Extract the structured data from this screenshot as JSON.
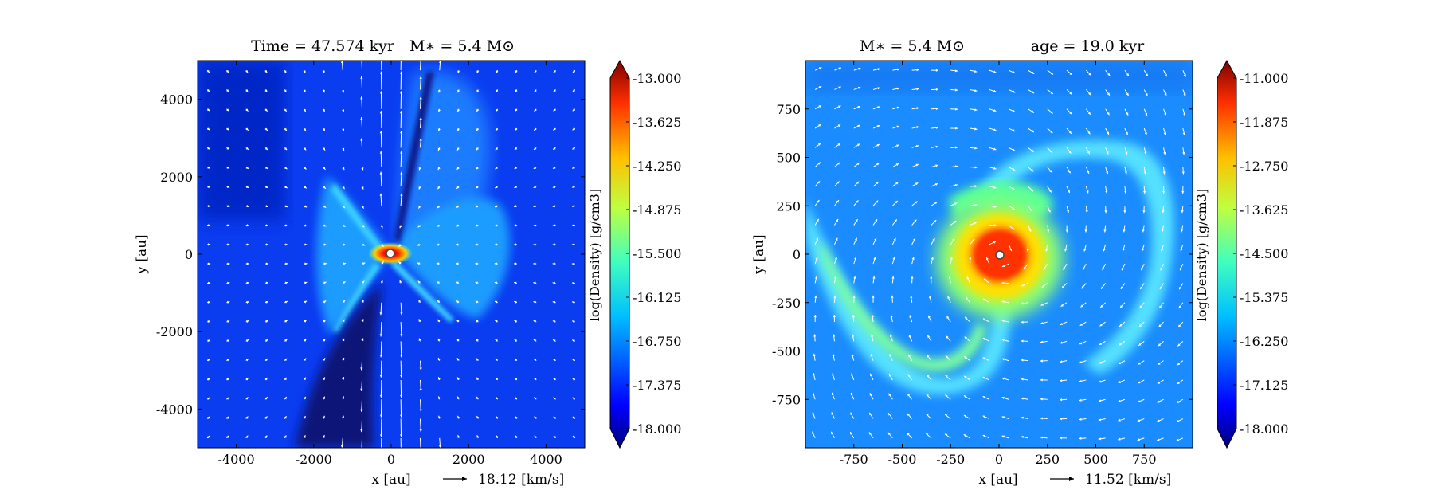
{
  "figure": {
    "background": "#ffffff"
  },
  "chart_data": [
    {
      "type": "heatmap",
      "title_left": "Time = 47.574 kyr",
      "title_right": "M∗ = 5.4 M⊙",
      "xlabel": "x [au]",
      "ylabel": "y [au]",
      "xlim": [
        -5000,
        5000
      ],
      "ylim": [
        -5000,
        5000
      ],
      "xticks": [
        "-4000",
        "-2000",
        "0",
        "2000",
        "4000"
      ],
      "yticks": [
        "4000",
        "2000",
        "0",
        "-2000",
        "-4000"
      ],
      "xtick_values": [
        -4000,
        -2000,
        0,
        2000,
        4000
      ],
      "ytick_values": [
        4000,
        2000,
        0,
        -2000,
        -4000
      ],
      "vector_key": "18.12 [km/s]",
      "colorbar": {
        "label": "log(Density) [g/cm3]",
        "min": -18.0,
        "max": -13.0,
        "ticks": [
          "-13.000",
          "-13.625",
          "-14.250",
          "-14.875",
          "-15.500",
          "-16.125",
          "-16.750",
          "-17.375",
          "-18.000"
        ],
        "tick_values": [
          -13.0,
          -13.625,
          -14.25,
          -14.875,
          -15.5,
          -16.125,
          -16.75,
          -17.375,
          -18.0
        ]
      },
      "feature": "bipolar outflow cavity with central dense disk",
      "star_position": [
        0,
        0
      ]
    },
    {
      "type": "heatmap",
      "title_left": "M∗ = 5.4 M⊙",
      "title_right": "age = 19.0 kyr",
      "xlabel": "x [au]",
      "ylabel": "y [au]",
      "xlim": [
        -1000,
        1000
      ],
      "ylim": [
        -1000,
        1000
      ],
      "xticks": [
        "-750",
        "-500",
        "-250",
        "0",
        "250",
        "500",
        "750"
      ],
      "yticks": [
        "750",
        "500",
        "250",
        "0",
        "-250",
        "-500",
        "-750"
      ],
      "xtick_values": [
        -750,
        -500,
        -250,
        0,
        250,
        500,
        750
      ],
      "ytick_values": [
        750,
        500,
        250,
        0,
        -250,
        -500,
        -750
      ],
      "vector_key": "11.52 [km/s]",
      "colorbar": {
        "label": "log(Density) [g/cm3]",
        "min": -18.0,
        "max": -11.0,
        "ticks": [
          "-11.000",
          "-11.875",
          "-12.750",
          "-13.625",
          "-14.500",
          "-15.375",
          "-16.250",
          "-17.125",
          "-18.000"
        ],
        "tick_values": [
          -11.0,
          -11.875,
          -12.75,
          -13.625,
          -14.5,
          -15.375,
          -16.25,
          -17.125,
          -18.0
        ]
      },
      "feature": "spiral accretion arms around dense central disk",
      "star_position": [
        0,
        0
      ]
    }
  ]
}
